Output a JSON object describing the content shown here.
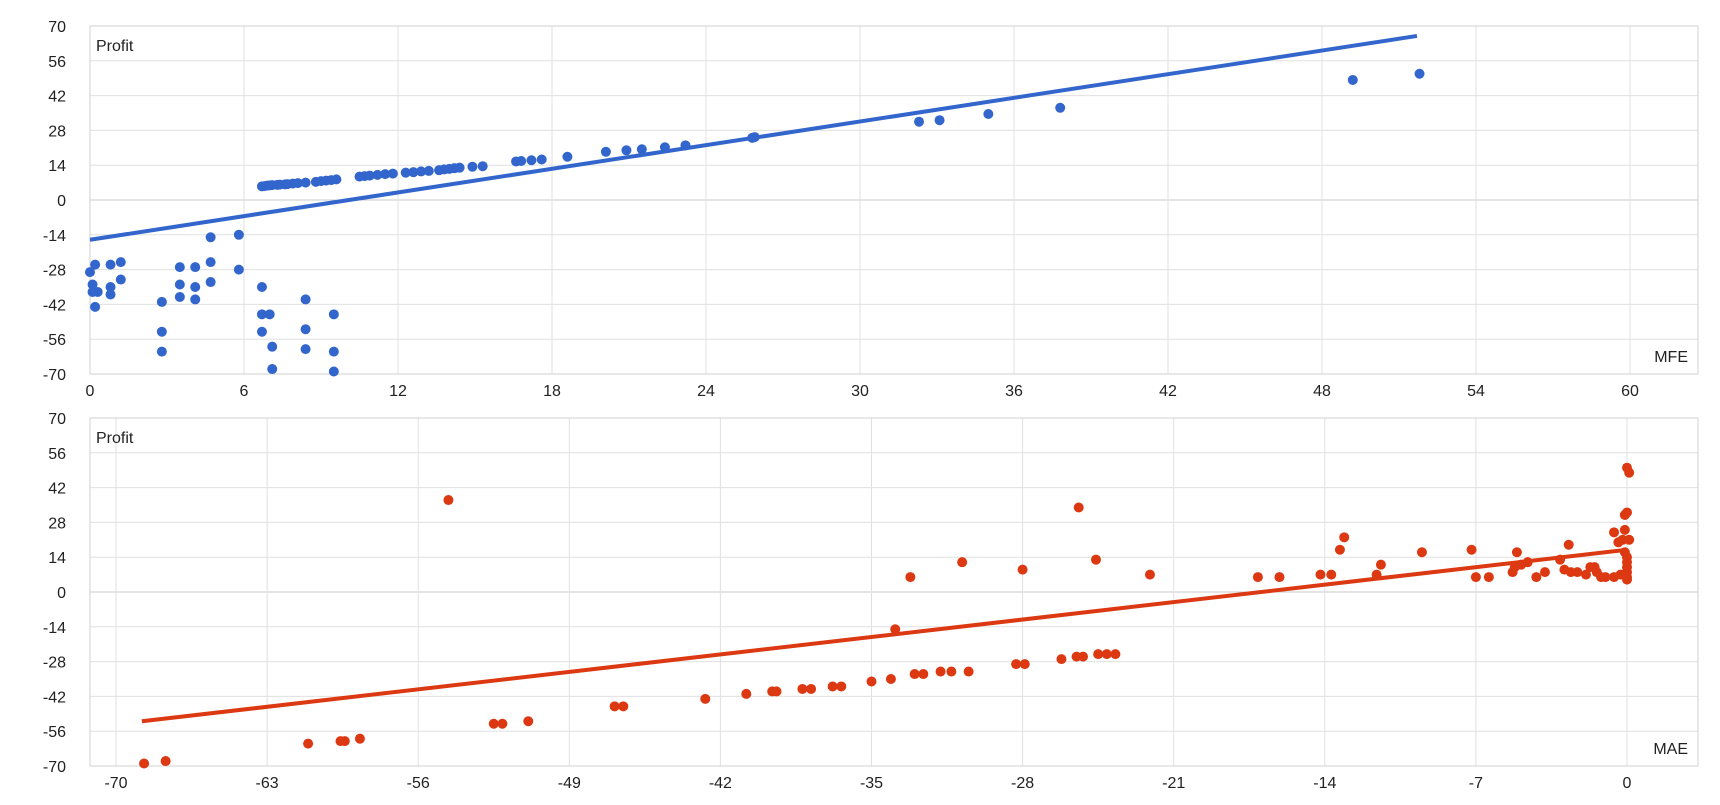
{
  "chart_data": [
    {
      "type": "scatter",
      "ylabel": "Profit",
      "xlabel": "MFE",
      "xlim": [
        0,
        60
      ],
      "ylim": [
        -70,
        70
      ],
      "x_ticks": [
        0,
        6,
        12,
        18,
        24,
        30,
        36,
        42,
        48,
        54,
        60
      ],
      "y_ticks": [
        -70,
        -56,
        -42,
        -28,
        -14,
        0,
        14,
        28,
        42,
        56,
        70
      ],
      "grid": true,
      "color": "#3366cc",
      "trendline": {
        "x1": 0,
        "y1": -16,
        "x2": 51.7,
        "y2": 66
      },
      "points": [
        [
          0,
          -29
        ],
        [
          0.1,
          -37
        ],
        [
          0.2,
          -43
        ],
        [
          0.2,
          -26
        ],
        [
          0.1,
          -34
        ],
        [
          0.3,
          -37
        ],
        [
          0.8,
          -26
        ],
        [
          0.8,
          -35
        ],
        [
          0.8,
          -38
        ],
        [
          1.2,
          -25
        ],
        [
          1.2,
          -32
        ],
        [
          2.8,
          -41
        ],
        [
          2.8,
          -53
        ],
        [
          2.8,
          -61
        ],
        [
          3.5,
          -27
        ],
        [
          3.5,
          -34
        ],
        [
          3.5,
          -39
        ],
        [
          4.1,
          -27
        ],
        [
          4.1,
          -35
        ],
        [
          4.1,
          -40
        ],
        [
          4.7,
          -15
        ],
        [
          4.7,
          -25
        ],
        [
          4.7,
          -33
        ],
        [
          5.8,
          -14
        ],
        [
          5.8,
          -28
        ],
        [
          6.7,
          -35
        ],
        [
          6.7,
          -46
        ],
        [
          6.7,
          -53
        ],
        [
          7.0,
          -46
        ],
        [
          7.1,
          -59
        ],
        [
          7.1,
          -68
        ],
        [
          8.4,
          -40
        ],
        [
          8.4,
          -52
        ],
        [
          8.4,
          -60
        ],
        [
          9.5,
          -46
        ],
        [
          9.5,
          -61
        ],
        [
          9.5,
          -69
        ],
        [
          6.7,
          5.5
        ],
        [
          6.8,
          5.6
        ],
        [
          6.9,
          5.8
        ],
        [
          7.0,
          5.9
        ],
        [
          7.1,
          6.0
        ],
        [
          7.3,
          6.1
        ],
        [
          7.4,
          6.2
        ],
        [
          7.6,
          6.3
        ],
        [
          7.7,
          6.4
        ],
        [
          7.9,
          6.6
        ],
        [
          8.1,
          6.8
        ],
        [
          8.4,
          7.0
        ],
        [
          8.8,
          7.3
        ],
        [
          9.0,
          7.6
        ],
        [
          9.2,
          7.8
        ],
        [
          9.4,
          8.0
        ],
        [
          9.6,
          8.3
        ],
        [
          10.5,
          9.4
        ],
        [
          10.7,
          9.6
        ],
        [
          10.9,
          9.8
        ],
        [
          11.2,
          10.1
        ],
        [
          11.5,
          10.4
        ],
        [
          11.8,
          10.6
        ],
        [
          12.3,
          11.0
        ],
        [
          12.6,
          11.2
        ],
        [
          12.9,
          11.5
        ],
        [
          13.2,
          11.7
        ],
        [
          13.6,
          12.0
        ],
        [
          13.8,
          12.3
        ],
        [
          14.0,
          12.5
        ],
        [
          14.2,
          12.8
        ],
        [
          14.4,
          13.0
        ],
        [
          14.9,
          13.4
        ],
        [
          15.3,
          13.6
        ],
        [
          16.6,
          15.5
        ],
        [
          16.8,
          15.7
        ],
        [
          17.2,
          16.0
        ],
        [
          17.6,
          16.3
        ],
        [
          18.6,
          17.4
        ],
        [
          20.1,
          19.4
        ],
        [
          20.9,
          20.0
        ],
        [
          21.5,
          20.4
        ],
        [
          22.4,
          21.2
        ],
        [
          23.2,
          22.0
        ],
        [
          25.8,
          25.0
        ],
        [
          25.9,
          25.3
        ],
        [
          32.3,
          31.5
        ],
        [
          33.1,
          32.1
        ],
        [
          35.0,
          34.6
        ],
        [
          37.8,
          37.1
        ],
        [
          49.2,
          48.3
        ],
        [
          51.8,
          50.8
        ]
      ]
    },
    {
      "type": "scatter",
      "ylabel": "Profit",
      "xlabel": "MAE",
      "xlim": [
        -70,
        0
      ],
      "ylim": [
        -70,
        70
      ],
      "x_ticks": [
        -70,
        -63,
        -56,
        -49,
        -42,
        -35,
        -28,
        -21,
        -14,
        -7,
        0
      ],
      "y_ticks": [
        -70,
        -56,
        -42,
        -28,
        -14,
        0,
        14,
        28,
        42,
        56,
        70
      ],
      "grid": true,
      "color": "#dc3912",
      "trendline": {
        "x1": -68.8,
        "y1": -52,
        "x2": 0,
        "y2": 17
      },
      "points": [
        [
          -68.7,
          -69
        ],
        [
          -67.7,
          -68
        ],
        [
          -54.6,
          37
        ],
        [
          -61.1,
          -61
        ],
        [
          -59.6,
          -60
        ],
        [
          -59.4,
          -60
        ],
        [
          -58.7,
          -59
        ],
        [
          -52.5,
          -53
        ],
        [
          -52.1,
          -53
        ],
        [
          -50.9,
          -52
        ],
        [
          -46.9,
          -46
        ],
        [
          -46.5,
          -46
        ],
        [
          -42.7,
          -43
        ],
        [
          -40.8,
          -41
        ],
        [
          -39.6,
          -40
        ],
        [
          -39.4,
          -40
        ],
        [
          -38.2,
          -39
        ],
        [
          -37.8,
          -39
        ],
        [
          -36.8,
          -38
        ],
        [
          -36.4,
          -38
        ],
        [
          -35.0,
          -36
        ],
        [
          -34.1,
          -35
        ],
        [
          -33.0,
          -33
        ],
        [
          -32.6,
          -33
        ],
        [
          -31.8,
          -32
        ],
        [
          -31.3,
          -32
        ],
        [
          -30.5,
          -32
        ],
        [
          -28.3,
          -29
        ],
        [
          -27.9,
          -29
        ],
        [
          -33.9,
          -15
        ],
        [
          -33.2,
          6
        ],
        [
          -30.8,
          12
        ],
        [
          -28.0,
          9
        ],
        [
          -26.2,
          -27
        ],
        [
          -25.5,
          -26
        ],
        [
          -25.2,
          -26
        ],
        [
          -24.5,
          -25
        ],
        [
          -24.1,
          -25
        ],
        [
          -23.7,
          -25
        ],
        [
          -25.4,
          34
        ],
        [
          -24.6,
          13
        ],
        [
          -22.1,
          7
        ],
        [
          -17.1,
          6
        ],
        [
          -16.1,
          6
        ],
        [
          -14.2,
          7
        ],
        [
          -13.7,
          7
        ],
        [
          -13.3,
          17
        ],
        [
          -13.1,
          22
        ],
        [
          -11.6,
          7
        ],
        [
          -11.4,
          11
        ],
        [
          -9.5,
          16
        ],
        [
          -7.2,
          17
        ],
        [
          -7.0,
          6
        ],
        [
          -6.4,
          6
        ],
        [
          -5.3,
          8
        ],
        [
          -5.2,
          10
        ],
        [
          -5.1,
          16
        ],
        [
          -4.9,
          11
        ],
        [
          -4.6,
          12
        ],
        [
          -4.2,
          6
        ],
        [
          -3.8,
          8
        ],
        [
          -3.1,
          13
        ],
        [
          -2.9,
          9
        ],
        [
          -2.7,
          19
        ],
        [
          -2.6,
          8
        ],
        [
          -2.3,
          8
        ],
        [
          -1.9,
          7
        ],
        [
          -1.7,
          10
        ],
        [
          -1.5,
          10
        ],
        [
          -1.4,
          8
        ],
        [
          -1.2,
          6
        ],
        [
          -1.0,
          6
        ],
        [
          -0.6,
          6
        ],
        [
          -0.6,
          24
        ],
        [
          -0.4,
          20
        ],
        [
          -0.3,
          7
        ],
        [
          -0.2,
          21
        ],
        [
          -0.1,
          25
        ],
        [
          -0.1,
          31
        ],
        [
          0,
          32
        ],
        [
          0,
          12
        ],
        [
          0,
          10
        ],
        [
          0,
          14
        ],
        [
          0,
          8
        ],
        [
          0,
          5
        ],
        [
          -0.1,
          16
        ],
        [
          0.1,
          21
        ],
        [
          0,
          50
        ],
        [
          0.1,
          48
        ],
        [
          0,
          6
        ]
      ]
    }
  ]
}
